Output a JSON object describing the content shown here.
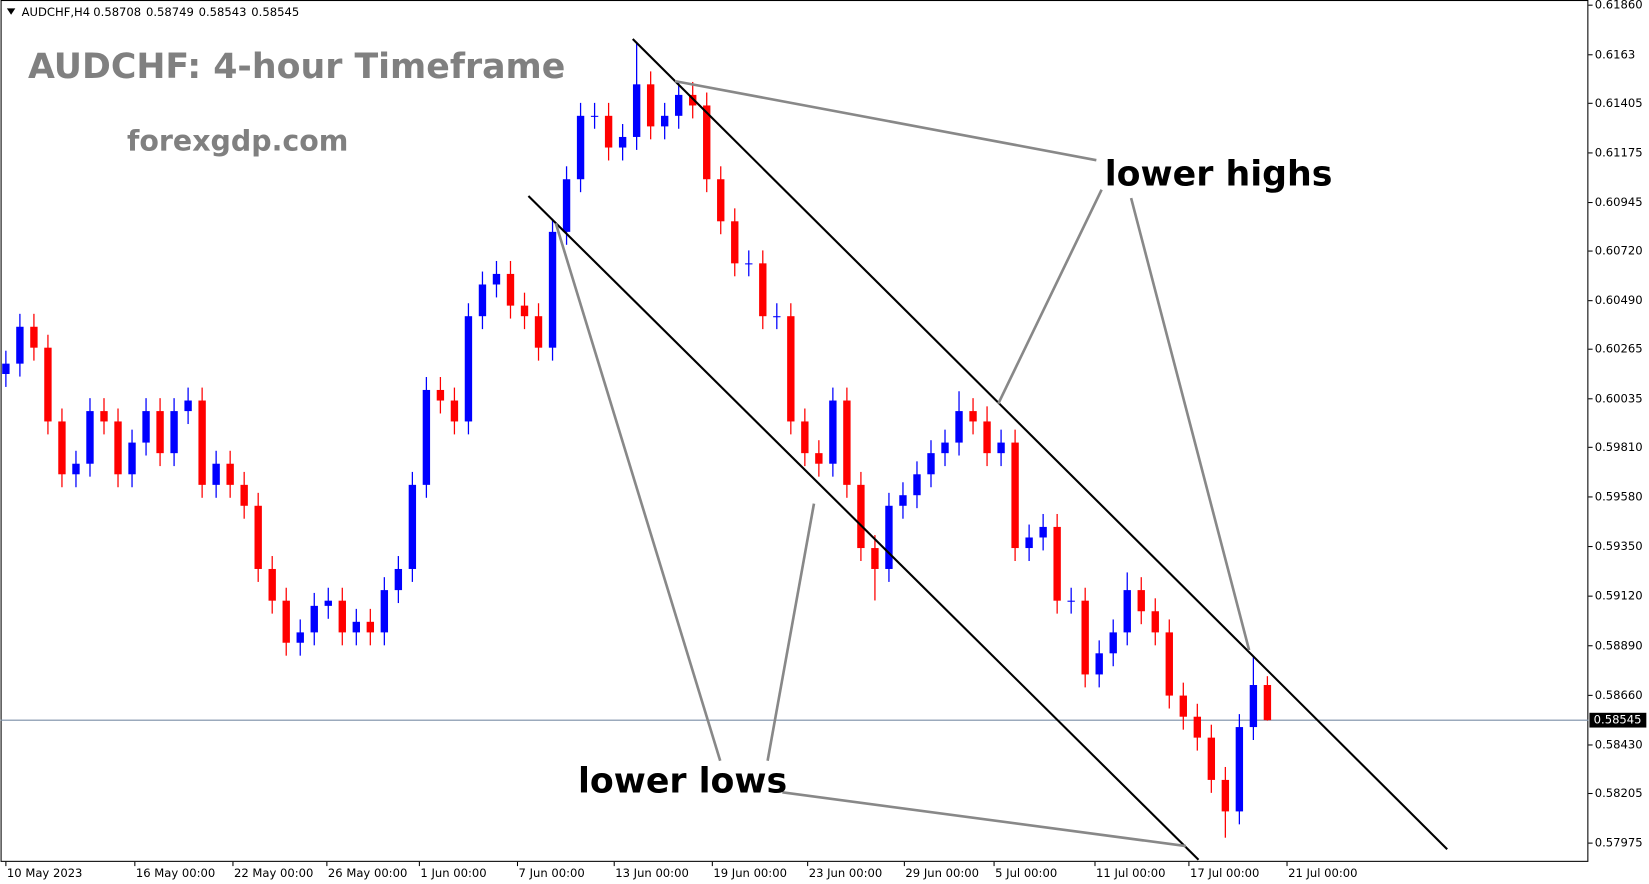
{
  "chart_data": {
    "type": "candlestick",
    "title": "AUDCHF: 4-hour Timeframe",
    "subtitle": "forexgdp.com",
    "symbol": "AUDCHF,H4",
    "annotations": [
      "lower highs",
      "lower lows"
    ],
    "up_color": "#0000ff",
    "down_color": "#ff0000",
    "price_line_color": "#7a8ea6",
    "grid": false,
    "xlim": [
      -0.38,
      112.9
    ],
    "xticks": [
      {
        "value": 0,
        "label": "10 May 2023"
      },
      {
        "value": 9.2,
        "label": "16 May 00:00"
      },
      {
        "value": 16.2,
        "label": "22 May 00:00"
      },
      {
        "value": 22.9,
        "label": "26 May 00:00"
      },
      {
        "value": 29.5,
        "label": "1 Jun 00:00"
      },
      {
        "value": 36.5,
        "label": "7 Jun 00:00"
      },
      {
        "value": 43.4,
        "label": "13 Jun 00:00"
      },
      {
        "value": 50.4,
        "label": "19 Jun 00:00"
      },
      {
        "value": 57.2,
        "label": "23 Jun 00:00"
      },
      {
        "value": 64.1,
        "label": "29 Jun 00:00"
      },
      {
        "value": 70.5,
        "label": "5 Jul 00:00"
      },
      {
        "value": 77.7,
        "label": "11 Jul 00:00"
      },
      {
        "value": 84.4,
        "label": "17 Jul 00:00"
      },
      {
        "value": 91.4,
        "label": "21 Jul 00:00"
      }
    ],
    "ylim": [
      0.57888,
      0.61884
    ],
    "yticks": [
      {
        "value": 0.6186,
        "label": "0.61860"
      },
      0.6163,
      0.61405,
      0.61175,
      0.60945,
      {
        "value": 0.6072,
        "label": "0.60720"
      },
      {
        "value": 0.6049,
        "label": "0.60490"
      },
      0.60265,
      0.60035,
      {
        "value": 0.5981,
        "label": "0.59810"
      },
      {
        "value": 0.5958,
        "label": "0.59580"
      },
      {
        "value": 0.5935,
        "label": "0.59350"
      },
      {
        "value": 0.5912,
        "label": "0.59120"
      },
      {
        "value": 0.5889,
        "label": "0.58890"
      },
      {
        "value": 0.5866,
        "label": "0.58660"
      },
      {
        "value": 0.5843,
        "label": "0.58430"
      },
      0.58205,
      0.57975
    ],
    "open": [
      0.6015,
      0.60198,
      0.60369,
      0.60272,
      0.5993,
      0.59685,
      0.59734,
      0.59978,
      0.5993,
      0.59685,
      0.59832,
      0.59978,
      0.59783,
      0.59978,
      0.60027,
      0.59636,
      0.59734,
      0.59636,
      0.59539,
      0.59246,
      0.59099,
      0.58904,
      0.58952,
      0.59075,
      0.59099,
      0.58952,
      0.59001,
      0.58952,
      0.59148,
      0.59246,
      0.59636,
      0.60076,
      0.60027,
      0.5993,
      0.60418,
      0.60565,
      0.60614,
      0.60467,
      0.60418,
      0.60272,
      0.60809,
      0.61053,
      0.61347,
      0.61347,
      0.612,
      0.61249,
      0.61493,
      0.61298,
      0.61347,
      0.61444,
      0.61395,
      0.61053,
      0.60858,
      0.60663,
      0.60663,
      0.60418,
      0.60418,
      0.5993,
      0.59783,
      0.59734,
      0.60027,
      0.59636,
      0.59343,
      0.59246,
      0.59539,
      0.59588,
      0.59685,
      0.59783,
      0.59832,
      0.59978,
      0.5993,
      0.59783,
      0.59832,
      0.59343,
      0.59392,
      0.59441,
      0.59099,
      0.59099,
      0.58757,
      0.58855,
      0.58952,
      0.59148,
      0.5905,
      0.58952,
      0.58659,
      0.58561,
      0.58464,
      0.58268,
      0.58122,
      0.58513,
      0.58708
    ],
    "high": [
      0.60258,
      0.60429,
      0.60429,
      0.60332,
      0.5999,
      0.59794,
      0.60038,
      0.60038,
      0.5999,
      0.59892,
      0.60038,
      0.60038,
      0.60038,
      0.60087,
      0.60087,
      0.59794,
      0.59794,
      0.59696,
      0.59599,
      0.59306,
      0.59159,
      0.59012,
      0.59135,
      0.59159,
      0.59159,
      0.59061,
      0.59061,
      0.59208,
      0.59306,
      0.59696,
      0.60136,
      0.60136,
      0.60087,
      0.60478,
      0.60625,
      0.60674,
      0.60674,
      0.60527,
      0.60478,
      0.60869,
      0.61113,
      0.61407,
      0.61407,
      0.61407,
      0.61309,
      0.6169,
      0.61553,
      0.61407,
      0.61504,
      0.61504,
      0.61455,
      0.61113,
      0.60918,
      0.60723,
      0.60723,
      0.60478,
      0.60478,
      0.5999,
      0.59843,
      0.60087,
      0.60087,
      0.59696,
      0.59403,
      0.59599,
      0.59648,
      0.59745,
      0.59843,
      0.59892,
      0.6007,
      0.60038,
      0.6,
      0.59892,
      0.59892,
      0.59452,
      0.59501,
      0.59501,
      0.59159,
      0.59159,
      0.58915,
      0.59012,
      0.5923,
      0.59208,
      0.5911,
      0.59012,
      0.58719,
      0.58621,
      0.58524,
      0.58328,
      0.58573,
      0.5884,
      0.58749
    ],
    "low": [
      0.6009,
      0.60138,
      0.60212,
      0.5987,
      0.59625,
      0.59625,
      0.59674,
      0.5987,
      0.59625,
      0.59625,
      0.59772,
      0.59723,
      0.59723,
      0.59918,
      0.59576,
      0.59576,
      0.59576,
      0.59479,
      0.59186,
      0.59039,
      0.58844,
      0.58844,
      0.58892,
      0.59015,
      0.58892,
      0.58892,
      0.58892,
      0.58892,
      0.59088,
      0.59186,
      0.59576,
      0.59967,
      0.5987,
      0.5987,
      0.60358,
      0.60505,
      0.60407,
      0.60358,
      0.60212,
      0.60212,
      0.60749,
      0.60993,
      0.61287,
      0.6114,
      0.6114,
      0.61189,
      0.61238,
      0.61238,
      0.61287,
      0.61335,
      0.60993,
      0.60798,
      0.60603,
      0.60603,
      0.60358,
      0.60358,
      0.5987,
      0.59723,
      0.59674,
      0.59674,
      0.59576,
      0.59283,
      0.591,
      0.59186,
      0.59479,
      0.59528,
      0.59625,
      0.59723,
      0.59772,
      0.5987,
      0.59723,
      0.59723,
      0.59283,
      0.59283,
      0.59332,
      0.59039,
      0.59039,
      0.58697,
      0.58697,
      0.58795,
      0.58892,
      0.5899,
      0.58892,
      0.58599,
      0.58501,
      0.58404,
      0.58208,
      0.58,
      0.58062,
      0.58453,
      0.58543
    ],
    "close": [
      0.60198,
      0.60369,
      0.60272,
      0.5993,
      0.59685,
      0.59734,
      0.59978,
      0.5993,
      0.59685,
      0.59832,
      0.59978,
      0.59783,
      0.59978,
      0.60027,
      0.59636,
      0.59734,
      0.59636,
      0.59539,
      0.59246,
      0.59099,
      0.58904,
      0.58952,
      0.59075,
      0.59099,
      0.58952,
      0.59001,
      0.58952,
      0.59148,
      0.59246,
      0.59636,
      0.60076,
      0.60027,
      0.5993,
      0.60418,
      0.60565,
      0.60614,
      0.60467,
      0.60418,
      0.60272,
      0.60809,
      0.61053,
      0.61347,
      0.61347,
      0.612,
      0.61249,
      0.61493,
      0.61298,
      0.61347,
      0.61444,
      0.61395,
      0.61053,
      0.60858,
      0.60663,
      0.60663,
      0.60418,
      0.60418,
      0.5993,
      0.59783,
      0.59734,
      0.60027,
      0.59636,
      0.59343,
      0.59246,
      0.59539,
      0.59588,
      0.59685,
      0.59783,
      0.59832,
      0.59978,
      0.5993,
      0.59783,
      0.59832,
      0.59343,
      0.59392,
      0.59441,
      0.59099,
      0.59099,
      0.58757,
      0.58855,
      0.58952,
      0.59148,
      0.5905,
      0.58952,
      0.58659,
      0.58561,
      0.58464,
      0.58268,
      0.58122,
      0.58513,
      0.58708,
      0.58545
    ]
  }
}
